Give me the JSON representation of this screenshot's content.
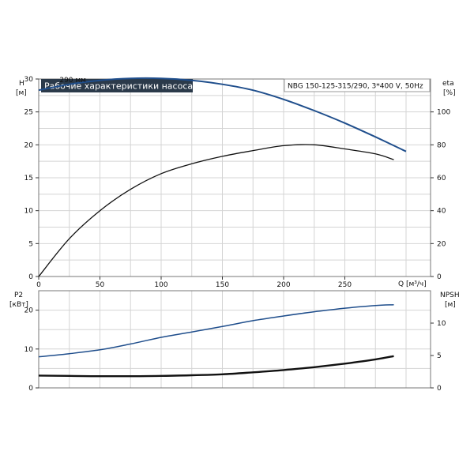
{
  "header": {
    "title": "Рабочие характеристики насоса",
    "model": "NBG 150-125-315/290, 3*400 V, 50Hz",
    "title_bg": "#2b3a4a"
  },
  "chart_data": [
    {
      "type": "line",
      "title": "Рабочие характеристики насоса",
      "xlabel": "Q [м³/ч]",
      "ylabel": "H [м]",
      "y2label": "eta [%]",
      "xlim": [
        0,
        320
      ],
      "ylim": [
        0,
        30
      ],
      "y2lim": [
        0,
        120
      ],
      "x_ticks": [
        0,
        50,
        100,
        150,
        200,
        250
      ],
      "y_ticks": [
        0,
        5,
        10,
        15,
        20,
        25,
        30
      ],
      "y2_ticks": [
        0,
        20,
        40,
        60,
        80,
        100
      ],
      "grid": true,
      "series": [
        {
          "axis": "left",
          "color": "#1f4e8c",
          "label": "290 мм",
          "x": [
            0,
            25,
            50,
            75,
            100,
            125,
            150,
            175,
            200,
            225,
            250,
            275,
            300
          ],
          "y": [
            28.3,
            29.2,
            29.8,
            30.1,
            30.1,
            29.8,
            29.2,
            28.3,
            26.9,
            25.2,
            23.3,
            21.2,
            19.0
          ]
        },
        {
          "axis": "right",
          "color": "#111111",
          "x": [
            0,
            25,
            50,
            75,
            100,
            125,
            150,
            175,
            200,
            225,
            250,
            275,
            290
          ],
          "y": [
            0,
            23,
            40,
            53,
            62.5,
            68.5,
            73,
            76.5,
            79.5,
            80,
            77.5,
            74.5,
            71
          ]
        }
      ]
    },
    {
      "type": "line",
      "ylabel": "P2 [кВт]",
      "y2label": "NPSH [м]",
      "xlim": [
        0,
        320
      ],
      "ylim": [
        0,
        25
      ],
      "y2lim": [
        0,
        15
      ],
      "y_ticks": [
        0,
        10,
        20
      ],
      "y2_ticks": [
        0,
        5,
        10
      ],
      "grid": true,
      "series": [
        {
          "axis": "left",
          "color": "#1f4e8c",
          "x": [
            0,
            25,
            50,
            75,
            100,
            125,
            150,
            175,
            200,
            225,
            250,
            275,
            290
          ],
          "y": [
            8.0,
            8.8,
            9.8,
            11.3,
            13.0,
            14.4,
            15.8,
            17.3,
            18.5,
            19.6,
            20.5,
            21.2,
            21.4
          ]
        },
        {
          "axis": "right",
          "color": "#111111",
          "x": [
            0,
            25,
            50,
            75,
            100,
            125,
            150,
            175,
            200,
            225,
            250,
            275,
            290
          ],
          "y": [
            1.9,
            1.85,
            1.8,
            1.8,
            1.85,
            1.95,
            2.1,
            2.4,
            2.75,
            3.2,
            3.75,
            4.4,
            4.9
          ]
        }
      ]
    }
  ]
}
